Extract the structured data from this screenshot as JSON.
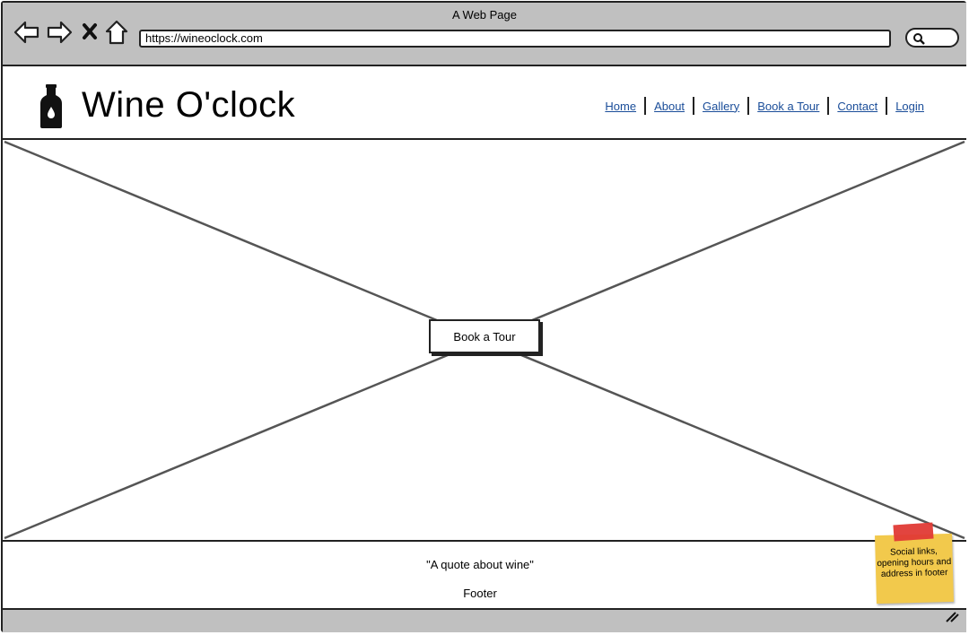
{
  "browser": {
    "window_title": "A Web Page",
    "url": "https://wineoclock.com",
    "icons": [
      "back-icon",
      "forward-icon",
      "stop-icon",
      "home-icon",
      "search-icon"
    ]
  },
  "site": {
    "brand": "Wine O'clock",
    "nav": [
      {
        "label": "Home"
      },
      {
        "label": "About"
      },
      {
        "label": "Gallery"
      },
      {
        "label": "Book a Tour"
      },
      {
        "label": "Contact"
      },
      {
        "label": "Login"
      }
    ],
    "hero": {
      "cta_label": "Book a Tour"
    },
    "footer": {
      "quote": "\"A quote about wine\"",
      "label": "Footer"
    }
  },
  "annotation": {
    "note": "Social links, opening hours and address in footer"
  },
  "colors": {
    "chrome": "#c0c0c0",
    "link": "#1a4d99",
    "sticky_note": "#f2c94c",
    "tape": "#e03a35"
  }
}
